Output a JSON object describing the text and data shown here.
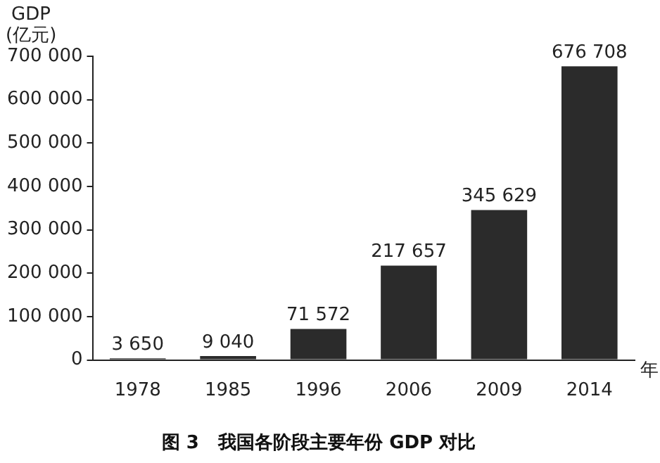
{
  "chart_data": {
    "type": "bar",
    "title": "图 3   我国各阶段主要年份 GDP 对比",
    "ylabel": "GDP\n(亿元)",
    "xlabel": "年",
    "categories": [
      "1978",
      "1985",
      "1996",
      "2006",
      "2009",
      "2014"
    ],
    "values": [
      3650,
      9040,
      71572,
      217657,
      345629,
      676708
    ],
    "value_labels": [
      "3 650",
      "9 040",
      "71 572",
      "217 657",
      "345 629",
      "676 708"
    ],
    "color": "#2b2b2b",
    "ylim": [
      0,
      700000
    ],
    "yticks": [
      {
        "value": 0,
        "label": "0"
      },
      {
        "value": 100000,
        "label": "100 000"
      },
      {
        "value": 200000,
        "label": "200 000"
      },
      {
        "value": 300000,
        "label": "300 000"
      },
      {
        "value": 400000,
        "label": "400 000"
      },
      {
        "value": 500000,
        "label": "500 000"
      },
      {
        "value": 600000,
        "label": "600 000"
      },
      {
        "value": 700000,
        "label": "700 000"
      }
    ],
    "grid": false,
    "legend": false
  }
}
